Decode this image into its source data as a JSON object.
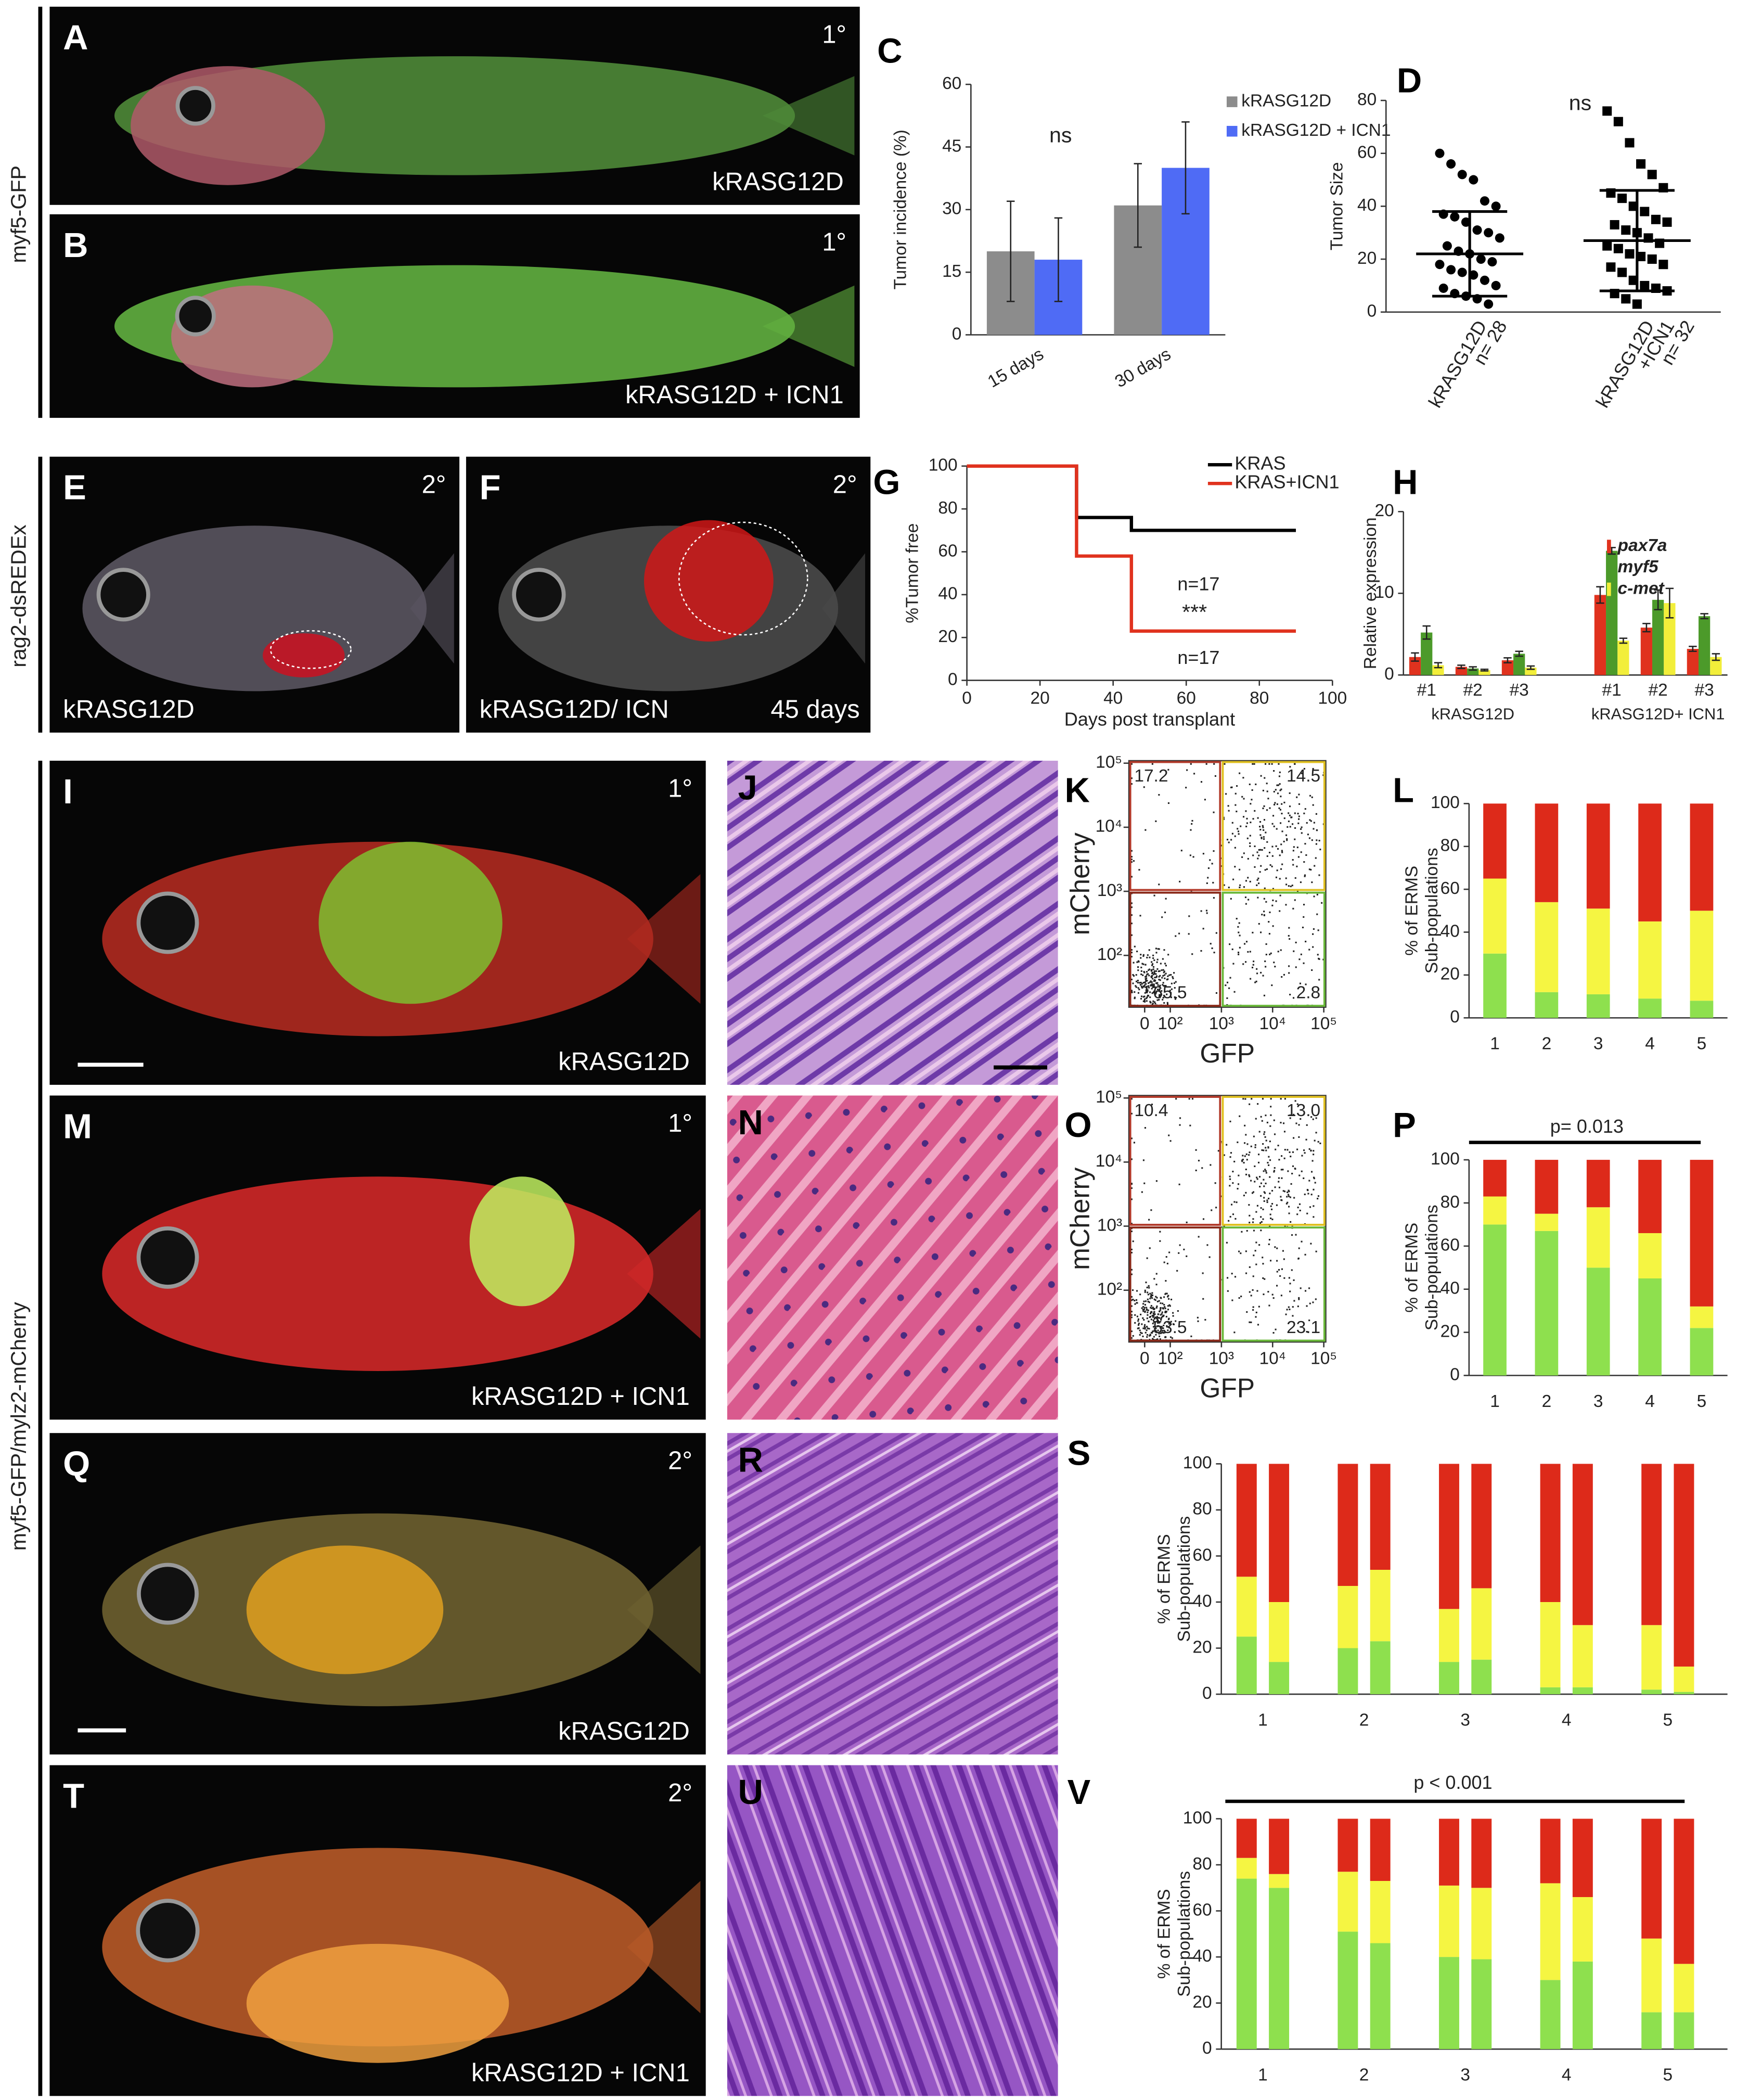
{
  "side_labels": [
    "myf5-GFP",
    "rag2-dsREDEx",
    "myf5-GFP/mylz2-mCherry"
  ],
  "photos": [
    {
      "letter": "A",
      "stage": "1°",
      "label": "kRASG12D"
    },
    {
      "letter": "B",
      "stage": "1°",
      "label": "kRASG12D + ICN1"
    },
    {
      "letter": "E",
      "stage": "2°",
      "label": "kRASG12D"
    },
    {
      "letter": "F",
      "stage": "2°",
      "label": "kRASG12D/ ICN",
      "note": "45 days"
    },
    {
      "letter": "I",
      "stage": "1°",
      "label": "kRASG12D"
    },
    {
      "letter": "J"
    },
    {
      "letter": "M",
      "stage": "1°",
      "label": "kRASG12D + ICN1"
    },
    {
      "letter": "N"
    },
    {
      "letter": "Q",
      "stage": "2°",
      "label": "kRASG12D"
    },
    {
      "letter": "R"
    },
    {
      "letter": "T",
      "stage": "2°",
      "label": "kRASG12D + ICN1"
    },
    {
      "letter": "U"
    }
  ],
  "chart_data": [
    {
      "type": "bar",
      "letter": "C",
      "ylabel": "Tumor incidence (%)",
      "categories": [
        "15 days",
        "30 days"
      ],
      "series": [
        {
          "name": "kRASG12D",
          "color": "#8c8c8c",
          "values": [
            20,
            31
          ],
          "errors": [
            12,
            10
          ]
        },
        {
          "name": "kRASG12D + ICN1",
          "color": "#4f6bf5",
          "values": [
            18,
            40
          ],
          "errors": [
            10,
            11
          ]
        }
      ],
      "ylim": [
        0,
        60
      ],
      "yticks": [
        0,
        15,
        30,
        45,
        60
      ],
      "annotations": [
        "ns"
      ]
    },
    {
      "type": "strip",
      "letter": "D",
      "ylabel": "Tumor Size",
      "categories": [
        [
          "kRASG12D",
          "n= 28"
        ],
        [
          "kRASG12D",
          "+ICN1",
          "n= 32"
        ]
      ],
      "series": [
        {
          "values": [
            60,
            56,
            52,
            50,
            42,
            40,
            37,
            36,
            34,
            31,
            30,
            28,
            25,
            23,
            22,
            20,
            19,
            18,
            16,
            15,
            14,
            12,
            10,
            9,
            7,
            6,
            5,
            3
          ]
        },
        {
          "values": [
            76,
            72,
            64,
            56,
            52,
            47,
            45,
            43,
            40,
            38,
            35,
            34,
            33,
            31,
            30,
            28,
            26,
            25,
            24,
            22,
            21,
            20,
            18,
            17,
            15,
            12,
            10,
            9,
            8,
            7,
            5,
            3
          ]
        }
      ],
      "means": [
        22,
        27
      ],
      "errors": [
        16,
        19
      ],
      "color": "#000000",
      "ylim": [
        0,
        80
      ],
      "yticks": [
        0,
        20,
        40,
        60,
        80
      ],
      "annotations": [
        "ns"
      ]
    },
    {
      "type": "line",
      "letter": "G",
      "xlabel": "Days post transplant",
      "ylabel": "%Tumor free",
      "x": [
        0,
        30,
        30,
        45,
        45,
        90
      ],
      "series": [
        {
          "name": "KRAS",
          "color": "#000000",
          "values": [
            100,
            100,
            76,
            76,
            70,
            70
          ]
        },
        {
          "name": "KRAS+ICN1",
          "color": "#e0321e",
          "values": [
            100,
            100,
            58,
            58,
            23,
            23
          ]
        }
      ],
      "xlim": [
        0,
        100
      ],
      "xticks": [
        0,
        20,
        40,
        60,
        80,
        100
      ],
      "ylim": [
        0,
        100
      ],
      "yticks": [
        0,
        20,
        40,
        60,
        80,
        100
      ],
      "annotations": [
        "n=17",
        "***",
        "n=17"
      ]
    },
    {
      "type": "bar",
      "letter": "H",
      "ylabel": "Relative expression",
      "categories": [
        "#1",
        "#2",
        "#3",
        "#1",
        "#2",
        "#3"
      ],
      "groups": [
        "kRASG12D",
        "kRASG12D+ ICN1"
      ],
      "series": [
        {
          "name": "pax7a",
          "color": "#e0321e",
          "values": [
            2.2,
            1,
            1.8,
            9.8,
            5.8,
            3.2
          ],
          "errors": [
            0.5,
            0.2,
            0.3,
            1.0,
            0.5,
            0.3
          ]
        },
        {
          "name": "myf5",
          "color": "#4c9a2a",
          "values": [
            5.2,
            0.8,
            2.6,
            15.2,
            9.2,
            7.2
          ],
          "errors": [
            0.8,
            0.2,
            0.3,
            0.4,
            1.2,
            0.3
          ]
        },
        {
          "name": "c-met",
          "color": "#f2ee3a",
          "values": [
            1.2,
            0.6,
            0.9,
            4.2,
            8.8,
            2.2
          ],
          "errors": [
            0.3,
            0.1,
            0.2,
            0.3,
            1.8,
            0.4
          ]
        }
      ],
      "ylim": [
        0,
        20
      ],
      "yticks": [
        0,
        10,
        20
      ]
    },
    {
      "type": "flow",
      "letter": "K",
      "xlabel": "GFP",
      "ylabel": "mCherry",
      "log": true,
      "quadrants": [
        17.2,
        14.5,
        65.5,
        2.8
      ],
      "xticks": [
        0,
        {
          "value": 100,
          "label": "10²"
        },
        {
          "value": 1000,
          "label": "10³"
        },
        {
          "value": 10000,
          "label": "10⁴"
        },
        {
          "value": 100000,
          "label": "10⁵"
        }
      ],
      "yticks": [
        {
          "value": 100,
          "label": "10²"
        },
        {
          "value": 1000,
          "label": "10³"
        },
        {
          "value": 10000,
          "label": "10⁴"
        },
        {
          "value": 100000,
          "label": "10⁵"
        }
      ]
    },
    {
      "type": "bar",
      "stacked": true,
      "letter": "L",
      "ylabel": [
        "% of ERMS",
        "Sub-populations"
      ],
      "categories": [
        "1",
        "2",
        "3",
        "4",
        "5"
      ],
      "series": [
        {
          "color": "#8ee04e",
          "values": [
            30,
            12,
            11,
            9,
            8
          ]
        },
        {
          "color": "#f5f542",
          "values": [
            35,
            42,
            40,
            36,
            42
          ]
        },
        {
          "color": "#dd2a1a",
          "values": [
            35,
            46,
            49,
            55,
            50
          ]
        }
      ],
      "ylim": [
        0,
        100
      ],
      "yticks": [
        0,
        20,
        40,
        60,
        80,
        100
      ]
    },
    {
      "type": "flow",
      "letter": "O",
      "xlabel": "GFP",
      "ylabel": "mCherry",
      "log": true,
      "quadrants": [
        10.4,
        {
          "value": 13,
          "label": "13.0"
        },
        53.5,
        23.1
      ],
      "xticks": [
        0,
        {
          "value": 100,
          "label": "10²"
        },
        {
          "value": 1000,
          "label": "10³"
        },
        {
          "value": 10000,
          "label": "10⁴"
        },
        {
          "value": 100000,
          "label": "10⁵"
        }
      ],
      "yticks": [
        {
          "value": 100,
          "label": "10²"
        },
        {
          "value": 1000,
          "label": "10³"
        },
        {
          "value": 10000,
          "label": "10⁴"
        },
        {
          "value": 100000,
          "label": "10⁵"
        }
      ]
    },
    {
      "type": "bar",
      "stacked": true,
      "letter": "P",
      "ylabel": [
        "% of ERMS",
        "Sub-populations"
      ],
      "categories": [
        "1",
        "2",
        "3",
        "4",
        "5"
      ],
      "series": [
        {
          "color": "#8ee04e",
          "values": [
            70,
            67,
            50,
            45,
            22
          ]
        },
        {
          "color": "#f5f542",
          "values": [
            13,
            8,
            28,
            21,
            10
          ]
        },
        {
          "color": "#dd2a1a",
          "values": [
            17,
            25,
            22,
            34,
            68
          ]
        }
      ],
      "ylim": [
        0,
        100
      ],
      "yticks": [
        0,
        20,
        40,
        60,
        80,
        100
      ],
      "annotations": [
        "p= 0.013"
      ]
    },
    {
      "type": "bar",
      "stacked": true,
      "letter": "S",
      "ylabel": [
        "% of ERMS",
        "Sub-populations"
      ],
      "categories": [
        "1",
        null,
        "2",
        null,
        "3",
        null,
        "4",
        null,
        "5",
        null
      ],
      "series": [
        {
          "color": "#8ee04e",
          "values": [
            25,
            14,
            20,
            23,
            14,
            15,
            3,
            3,
            2,
            1
          ]
        },
        {
          "color": "#f5f542",
          "values": [
            26,
            26,
            27,
            31,
            23,
            31,
            37,
            27,
            28,
            11
          ]
        },
        {
          "color": "#dd2a1a",
          "values": [
            49,
            60,
            53,
            46,
            63,
            54,
            60,
            70,
            70,
            88
          ]
        }
      ],
      "ylim": [
        0,
        100
      ],
      "yticks": [
        0,
        20,
        40,
        60,
        80,
        100
      ]
    },
    {
      "type": "bar",
      "stacked": true,
      "letter": "V",
      "ylabel": [
        "% of ERMS",
        "Sub-populations"
      ],
      "categories": [
        "1",
        null,
        "2",
        null,
        "3",
        null,
        "4",
        null,
        "5",
        null
      ],
      "series": [
        {
          "color": "#8ee04e",
          "values": [
            74,
            70,
            51,
            46,
            40,
            39,
            30,
            38,
            16,
            16
          ]
        },
        {
          "color": "#f5f542",
          "values": [
            9,
            6,
            26,
            27,
            31,
            31,
            42,
            28,
            32,
            21
          ]
        },
        {
          "color": "#dd2a1a",
          "values": [
            17,
            24,
            23,
            27,
            29,
            30,
            28,
            34,
            52,
            63
          ]
        }
      ],
      "ylim": [
        0,
        100
      ],
      "yticks": [
        0,
        20,
        40,
        60,
        80,
        100
      ],
      "annotations": [
        "p < 0.001"
      ]
    }
  ]
}
